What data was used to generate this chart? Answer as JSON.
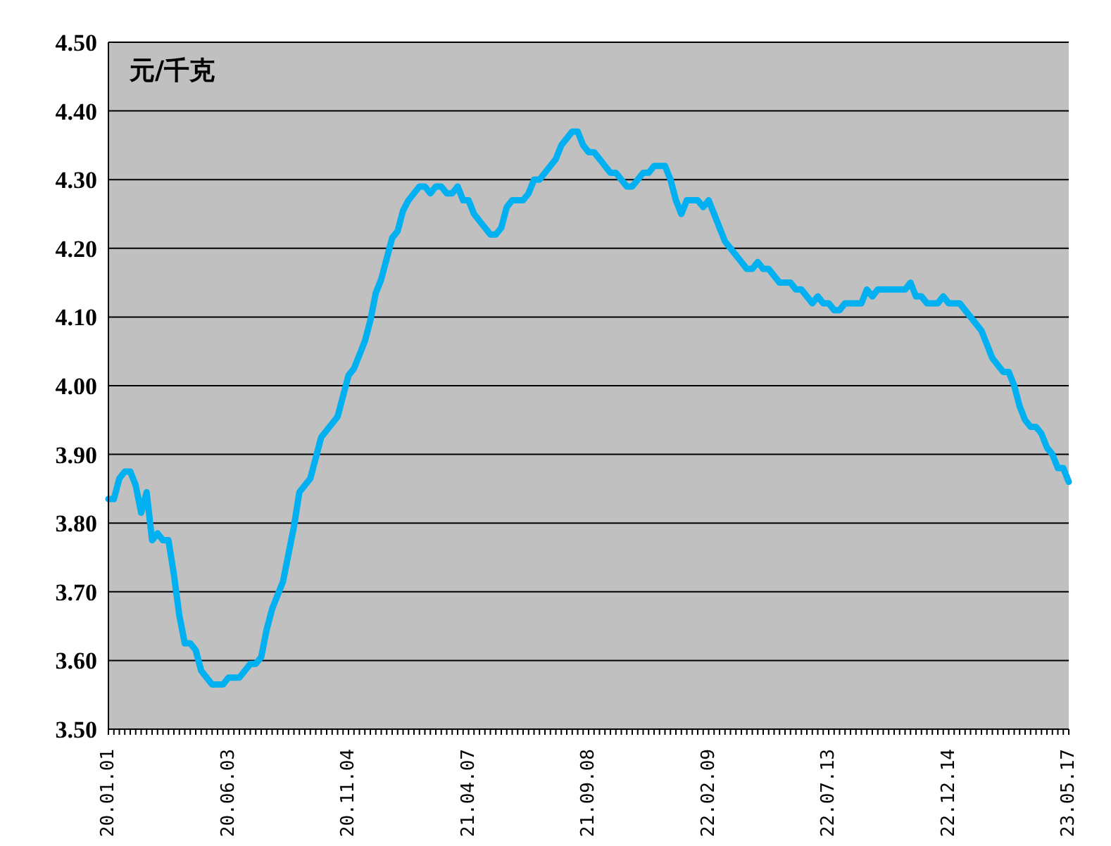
{
  "chart_data": {
    "type": "line",
    "ylabel": "元/千克",
    "categories": [
      "20.01.01",
      null,
      null,
      null,
      null,
      null,
      null,
      null,
      null,
      null,
      null,
      null,
      null,
      null,
      null,
      null,
      null,
      null,
      null,
      null,
      null,
      null,
      "20.06.03",
      null,
      null,
      null,
      null,
      null,
      null,
      null,
      null,
      null,
      null,
      null,
      null,
      null,
      null,
      null,
      null,
      null,
      null,
      null,
      null,
      null,
      "20.11.04",
      null,
      null,
      null,
      null,
      null,
      null,
      null,
      null,
      null,
      null,
      null,
      null,
      null,
      null,
      null,
      null,
      null,
      null,
      null,
      null,
      null,
      "21.04.07",
      null,
      null,
      null,
      null,
      null,
      null,
      null,
      null,
      null,
      null,
      null,
      null,
      null,
      null,
      null,
      null,
      null,
      null,
      null,
      null,
      null,
      "21.09.08",
      null,
      null,
      null,
      null,
      null,
      null,
      null,
      null,
      null,
      null,
      null,
      null,
      null,
      null,
      null,
      null,
      null,
      null,
      null,
      null,
      null,
      "22.02.09",
      null,
      null,
      null,
      null,
      null,
      null,
      null,
      null,
      null,
      null,
      null,
      null,
      null,
      null,
      null,
      null,
      null,
      null,
      null,
      null,
      null,
      "22.07.13",
      null,
      null,
      null,
      null,
      null,
      null,
      null,
      null,
      null,
      null,
      null,
      null,
      null,
      null,
      null,
      null,
      null,
      null,
      null,
      null,
      null,
      "22.12.14",
      null,
      null,
      null,
      null,
      null,
      null,
      null,
      null,
      null,
      null,
      null,
      null,
      null,
      null,
      null,
      null,
      null,
      null,
      null,
      null,
      null,
      "23.05.17"
    ],
    "series": [
      {
        "color": "#00b0f0",
        "values": [
          3.835,
          3.835,
          3.865,
          3.875,
          3.875,
          3.855,
          3.815,
          3.845,
          3.775,
          3.785,
          3.775,
          3.775,
          3.725,
          3.665,
          3.625,
          3.625,
          3.615,
          3.585,
          3.575,
          3.565,
          3.565,
          3.565,
          3.575,
          3.575,
          3.575,
          3.585,
          3.595,
          3.595,
          3.605,
          3.645,
          3.675,
          3.695,
          3.715,
          3.755,
          3.795,
          3.845,
          3.855,
          3.865,
          3.895,
          3.925,
          3.935,
          3.945,
          3.955,
          3.985,
          4.015,
          4.025,
          4.045,
          4.065,
          4.095,
          4.135,
          4.155,
          4.185,
          4.215,
          4.225,
          4.255,
          4.27,
          4.28,
          4.29,
          4.29,
          4.28,
          4.29,
          4.29,
          4.28,
          4.28,
          4.29,
          4.27,
          4.27,
          4.25,
          4.24,
          4.23,
          4.22,
          4.22,
          4.23,
          4.26,
          4.27,
          4.27,
          4.27,
          4.28,
          4.3,
          4.3,
          4.31,
          4.32,
          4.33,
          4.35,
          4.36,
          4.37,
          4.37,
          4.35,
          4.34,
          4.34,
          4.33,
          4.32,
          4.31,
          4.31,
          4.3,
          4.29,
          4.29,
          4.3,
          4.31,
          4.31,
          4.32,
          4.32,
          4.32,
          4.3,
          4.27,
          4.25,
          4.27,
          4.27,
          4.27,
          4.26,
          4.27,
          4.25,
          4.23,
          4.21,
          4.2,
          4.19,
          4.18,
          4.17,
          4.17,
          4.18,
          4.17,
          4.17,
          4.16,
          4.15,
          4.15,
          4.15,
          4.14,
          4.14,
          4.13,
          4.12,
          4.13,
          4.12,
          4.12,
          4.11,
          4.11,
          4.12,
          4.12,
          4.12,
          4.12,
          4.14,
          4.13,
          4.14,
          4.14,
          4.14,
          4.14,
          4.14,
          4.14,
          4.15,
          4.13,
          4.13,
          4.12,
          4.12,
          4.12,
          4.13,
          4.12,
          4.12,
          4.12,
          4.11,
          4.1,
          4.09,
          4.08,
          4.06,
          4.04,
          4.03,
          4.02,
          4.02,
          4.0,
          3.97,
          3.95,
          3.94,
          3.94,
          3.93,
          3.91,
          3.9,
          3.88,
          3.88,
          3.86
        ]
      }
    ],
    "ylim": [
      3.5,
      4.5
    ],
    "yticks": [
      {
        "value": 3.5,
        "label": "3.50"
      },
      {
        "value": 3.6,
        "label": "3.60"
      },
      {
        "value": 3.7,
        "label": "3.70"
      },
      {
        "value": 3.8,
        "label": "3.80"
      },
      {
        "value": 3.9,
        "label": "3.90"
      },
      {
        "value": 4.0,
        "label": "4.00"
      },
      {
        "value": 4.1,
        "label": "4.10"
      },
      {
        "value": 4.2,
        "label": "4.20"
      },
      {
        "value": 4.3,
        "label": "4.30"
      },
      {
        "value": 4.4,
        "label": "4.40"
      },
      {
        "value": 4.5,
        "label": "4.50"
      }
    ],
    "grid": "y",
    "marker": "none",
    "line_style": "solid",
    "legend": false
  }
}
